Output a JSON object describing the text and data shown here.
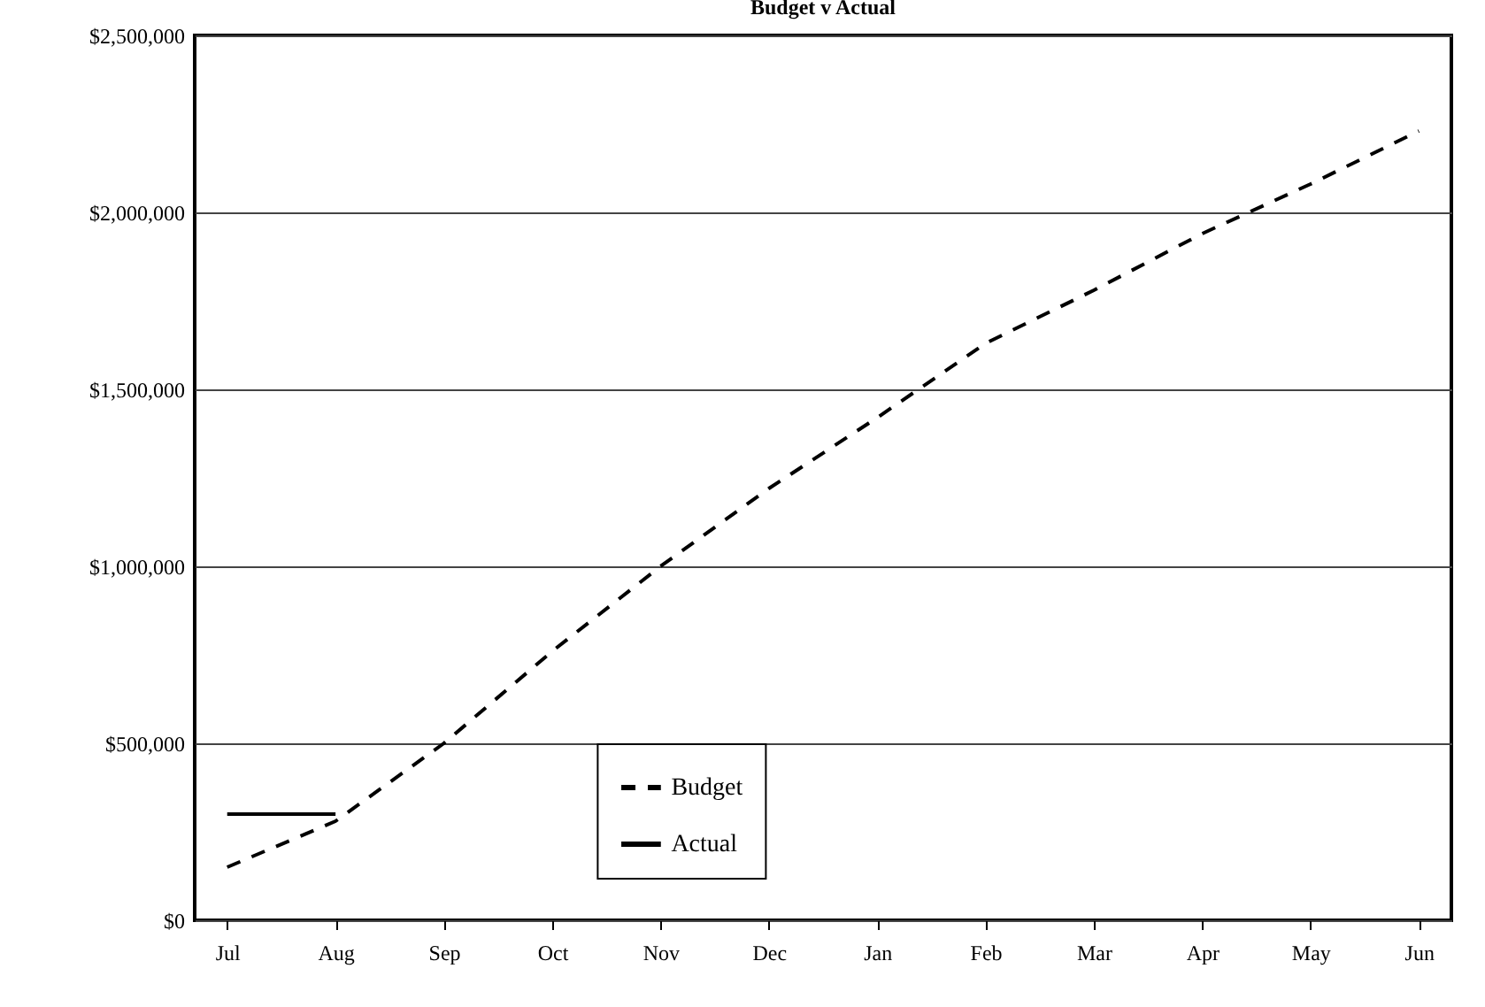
{
  "chart_data": {
    "type": "line",
    "title": "Budget v Actual",
    "categories": [
      "Jul",
      "Aug",
      "Sep",
      "Oct",
      "Nov",
      "Dec",
      "Jan",
      "Feb",
      "Mar",
      "Apr",
      "May",
      "Jun"
    ],
    "series": [
      {
        "name": "Budget",
        "color": "#000000",
        "line_style": "dashed",
        "values": [
          150000,
          280000,
          500000,
          760000,
          1000000,
          1220000,
          1420000,
          1630000,
          1780000,
          1940000,
          2080000,
          2230000
        ]
      },
      {
        "name": "Actual",
        "color": "#000000",
        "line_style": "solid",
        "values": [
          300000,
          300000,
          null,
          null,
          null,
          null,
          null,
          null,
          null,
          null,
          null,
          null
        ]
      }
    ],
    "ylim": [
      0,
      2500000
    ],
    "yticks": [
      {
        "value": 0,
        "label": "$0"
      },
      {
        "value": 500000,
        "label": "$500,000"
      },
      {
        "value": 1000000,
        "label": "$1,000,000"
      },
      {
        "value": 1500000,
        "label": "$1,500,000"
      },
      {
        "value": 2000000,
        "label": "$2,000,000"
      },
      {
        "value": 2500000,
        "label": "$2,500,000"
      }
    ],
    "grid": "y",
    "legend": "bottom",
    "marker": "none"
  }
}
